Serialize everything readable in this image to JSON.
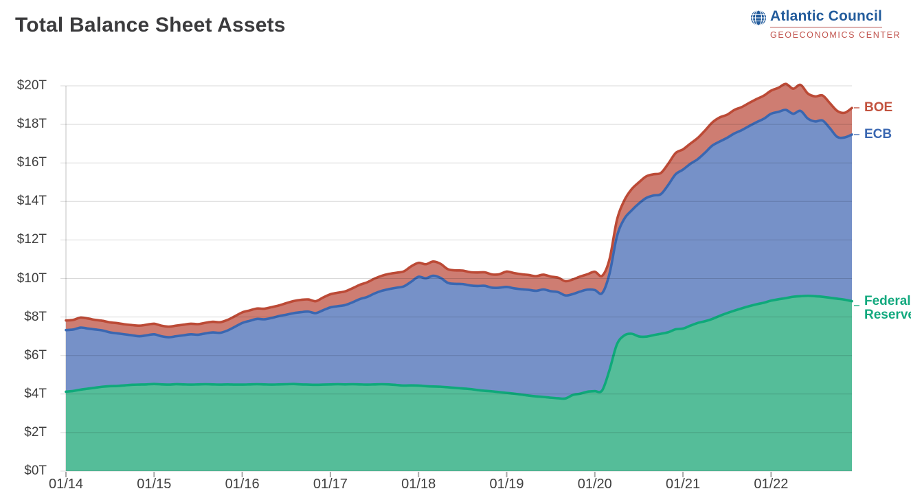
{
  "header": {
    "title": "Total Balance Sheet Assets",
    "logo": {
      "org": "Atlantic Council",
      "center": "GEOECONOMICS CENTER",
      "org_color": "#235c9c",
      "center_color": "#c25650"
    }
  },
  "chart_data": {
    "type": "area",
    "stacked": true,
    "title": "Total Balance Sheet Assets",
    "units": "USD trillions",
    "frequency": "monthly",
    "x_range": [
      "2014-01",
      "2022-12"
    ],
    "ylim": [
      0,
      20
    ],
    "grid": true,
    "legend_position": "right",
    "y_ticks": [
      {
        "value": 0,
        "label": "$0T"
      },
      {
        "value": 2,
        "label": "$2T"
      },
      {
        "value": 4,
        "label": "$4T"
      },
      {
        "value": 6,
        "label": "$6T"
      },
      {
        "value": 8,
        "label": "$8T"
      },
      {
        "value": 10,
        "label": "$10T"
      },
      {
        "value": 12,
        "label": "$12T"
      },
      {
        "value": 14,
        "label": "$14T"
      },
      {
        "value": 16,
        "label": "$16T"
      },
      {
        "value": 18,
        "label": "$18T"
      },
      {
        "value": 20,
        "label": "$20T"
      }
    ],
    "x_ticks": [
      {
        "index": 0,
        "label": "01/14"
      },
      {
        "index": 12,
        "label": "01/15"
      },
      {
        "index": 24,
        "label": "01/16"
      },
      {
        "index": 36,
        "label": "01/17"
      },
      {
        "index": 48,
        "label": "01/18"
      },
      {
        "index": 60,
        "label": "01/19"
      },
      {
        "index": 72,
        "label": "01/20"
      },
      {
        "index": 84,
        "label": "01/21"
      },
      {
        "index": 96,
        "label": "01/22"
      }
    ],
    "series": [
      {
        "name": "Federal Reserve",
        "line_color": "#0fa97a",
        "fill_color": "#55bd99",
        "label_color": "#12a97e",
        "values": [
          4.12,
          4.16,
          4.23,
          4.28,
          4.33,
          4.38,
          4.41,
          4.42,
          4.45,
          4.48,
          4.49,
          4.5,
          4.52,
          4.5,
          4.49,
          4.51,
          4.5,
          4.49,
          4.5,
          4.51,
          4.5,
          4.49,
          4.5,
          4.49,
          4.49,
          4.5,
          4.51,
          4.5,
          4.49,
          4.5,
          4.51,
          4.52,
          4.5,
          4.49,
          4.48,
          4.49,
          4.5,
          4.51,
          4.5,
          4.51,
          4.5,
          4.49,
          4.5,
          4.51,
          4.5,
          4.47,
          4.44,
          4.45,
          4.44,
          4.41,
          4.39,
          4.38,
          4.35,
          4.32,
          4.29,
          4.26,
          4.21,
          4.17,
          4.14,
          4.1,
          4.06,
          4.02,
          3.97,
          3.92,
          3.88,
          3.85,
          3.81,
          3.78,
          3.77,
          3.95,
          4.02,
          4.12,
          4.15,
          4.19,
          5.25,
          6.57,
          7.04,
          7.13,
          6.99,
          6.98,
          7.06,
          7.13,
          7.21,
          7.36,
          7.4,
          7.55,
          7.69,
          7.78,
          7.9,
          8.06,
          8.2,
          8.33,
          8.45,
          8.56,
          8.66,
          8.74,
          8.85,
          8.92,
          8.98,
          9.05,
          9.08,
          9.1,
          9.08,
          9.05,
          9.0,
          8.95,
          8.9,
          8.82
        ]
      },
      {
        "name": "ECB",
        "line_color": "#3a67b1",
        "fill_color": "#7691c8",
        "label_color": "#3a67b1",
        "values": [
          3.2,
          3.19,
          3.22,
          3.12,
          3.02,
          2.92,
          2.79,
          2.73,
          2.65,
          2.57,
          2.51,
          2.55,
          2.58,
          2.5,
          2.46,
          2.49,
          2.55,
          2.61,
          2.58,
          2.64,
          2.7,
          2.69,
          2.8,
          3.0,
          3.2,
          3.3,
          3.39,
          3.38,
          3.46,
          3.55,
          3.61,
          3.68,
          3.75,
          3.79,
          3.72,
          3.86,
          4.0,
          4.05,
          4.12,
          4.25,
          4.43,
          4.55,
          4.72,
          4.85,
          4.95,
          5.05,
          5.15,
          5.38,
          5.65,
          5.6,
          5.75,
          5.65,
          5.42,
          5.4,
          5.42,
          5.38,
          5.4,
          5.45,
          5.38,
          5.42,
          5.5,
          5.47,
          5.47,
          5.49,
          5.48,
          5.58,
          5.53,
          5.51,
          5.35,
          5.24,
          5.3,
          5.3,
          5.25,
          5.05,
          5.0,
          5.6,
          6.05,
          6.4,
          6.9,
          7.2,
          7.25,
          7.25,
          7.65,
          8.05,
          8.25,
          8.4,
          8.5,
          8.75,
          9.0,
          9.05,
          9.1,
          9.2,
          9.25,
          9.35,
          9.45,
          9.55,
          9.7,
          9.73,
          9.77,
          9.5,
          9.62,
          9.2,
          9.07,
          9.15,
          8.8,
          8.4,
          8.42,
          8.65
        ]
      },
      {
        "name": "BOE",
        "line_color": "#bc4a36",
        "fill_color": "#ce7d72",
        "label_color": "#c2523e",
        "values": [
          0.5,
          0.5,
          0.52,
          0.52,
          0.5,
          0.5,
          0.52,
          0.53,
          0.52,
          0.53,
          0.55,
          0.55,
          0.55,
          0.55,
          0.55,
          0.55,
          0.55,
          0.55,
          0.55,
          0.55,
          0.55,
          0.55,
          0.55,
          0.55,
          0.55,
          0.54,
          0.54,
          0.55,
          0.56,
          0.55,
          0.6,
          0.63,
          0.64,
          0.63,
          0.62,
          0.66,
          0.68,
          0.7,
          0.71,
          0.73,
          0.74,
          0.76,
          0.77,
          0.78,
          0.79,
          0.78,
          0.78,
          0.8,
          0.72,
          0.73,
          0.74,
          0.73,
          0.71,
          0.7,
          0.7,
          0.69,
          0.7,
          0.7,
          0.69,
          0.7,
          0.8,
          0.79,
          0.78,
          0.77,
          0.76,
          0.77,
          0.76,
          0.75,
          0.74,
          0.76,
          0.78,
          0.8,
          0.95,
          0.9,
          0.75,
          0.85,
          0.95,
          1.1,
          1.1,
          1.12,
          1.1,
          1.1,
          1.1,
          1.1,
          1.05,
          1.05,
          1.1,
          1.15,
          1.2,
          1.25,
          1.2,
          1.22,
          1.2,
          1.2,
          1.2,
          1.2,
          1.2,
          1.25,
          1.35,
          1.3,
          1.35,
          1.3,
          1.3,
          1.3,
          1.3,
          1.35,
          1.28,
          1.38
        ]
      }
    ],
    "style": {
      "grid_color": "rgba(0,0,0,0.15)",
      "axis_line_color": "#d6d6d6",
      "tick_color": "#a8a8a8",
      "label_color": "#3f3f3f"
    }
  }
}
